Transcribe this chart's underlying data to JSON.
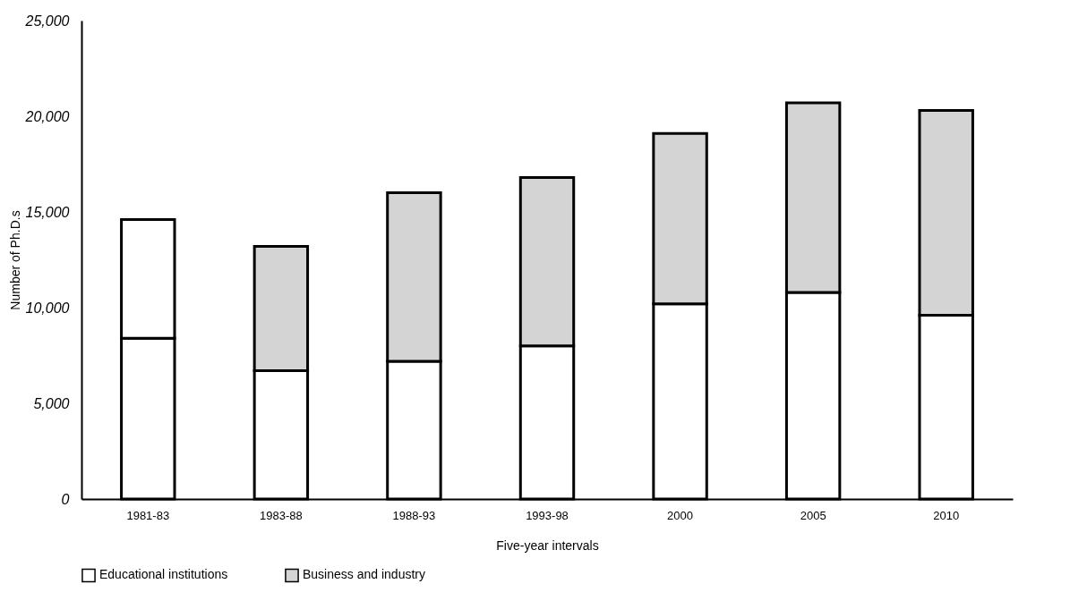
{
  "chart_data": {
    "type": "bar",
    "stacked": true,
    "xlabel": "Five-year intervals",
    "ylabel": "Number of Ph.D.s",
    "categories": [
      "1981-83",
      "1983-88",
      "1988-93",
      "1993-98",
      "2000",
      "2005",
      "2010"
    ],
    "series": [
      {
        "name": "Educational institutions",
        "color": "#ffffff",
        "values": [
          8400,
          6700,
          7200,
          8000,
          10200,
          10800,
          9600
        ]
      },
      {
        "name": "Business and industry",
        "color": "#d4d4d4",
        "colors": [
          "#ffffff",
          "#d4d4d4",
          "#d4d4d4",
          "#d4d4d4",
          "#d4d4d4",
          "#d4d4d4",
          "#d4d4d4"
        ],
        "values": [
          6200,
          6500,
          8800,
          8800,
          8900,
          9900,
          10700
        ]
      }
    ],
    "ylim": [
      0,
      25000
    ],
    "yticks": [
      {
        "value": 0,
        "label": "0"
      },
      {
        "value": 5000,
        "label": "5,000"
      },
      {
        "value": 10000,
        "label": "10,000"
      },
      {
        "value": 15000,
        "label": "15,000"
      },
      {
        "value": 20000,
        "label": "20,000"
      },
      {
        "value": 25000,
        "label": "25,000"
      }
    ],
    "grid": false,
    "legend": "bottom"
  }
}
